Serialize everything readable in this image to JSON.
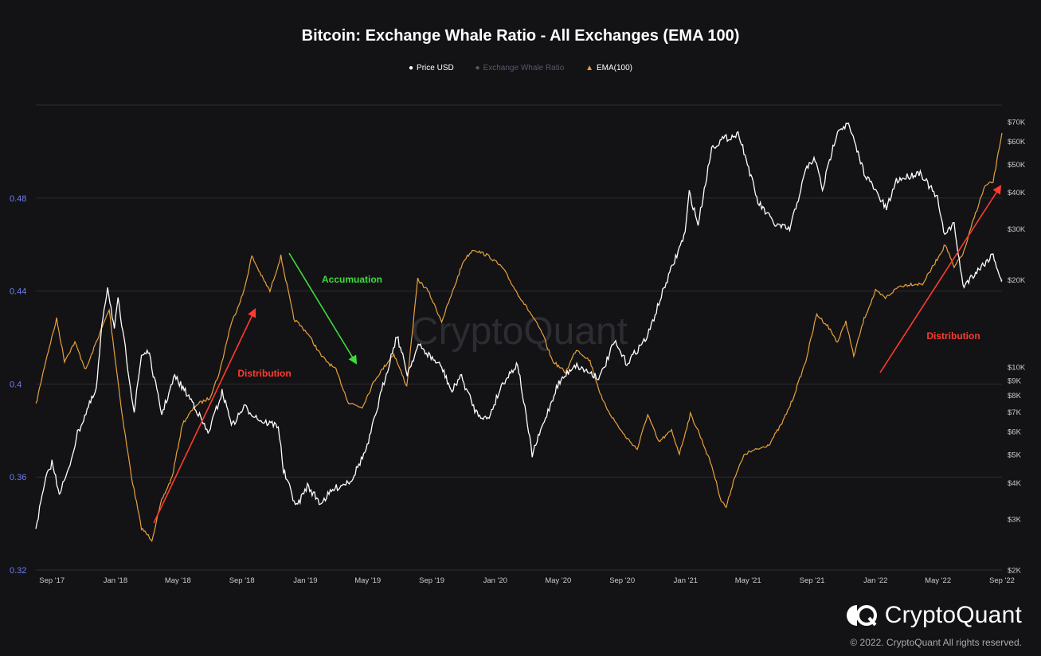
{
  "title": "Bitcoin: Exchange Whale Ratio - All Exchanges (EMA 100)",
  "legend": {
    "price": "Price USD",
    "whale": "Exchange Whale Ratio",
    "ema": "EMA(100)"
  },
  "colors": {
    "background": "#131316",
    "price_line": "#ffffff",
    "ema_line": "#e8a13b",
    "left_axis_text": "#6f7cf0",
    "right_axis_text": "#c9c9cf",
    "grid": "#2c2c33",
    "arrow_red": "#ff3b30",
    "arrow_green": "#3ddc3d",
    "text_red": "#ff3b30",
    "text_green": "#3ddc3d"
  },
  "annotations": {
    "distribution_1": "Distribution",
    "accumulation": "Accumuation",
    "distribution_2": "Distribution"
  },
  "brand": {
    "name": "CryptoQuant",
    "watermark": "CryptoQuant",
    "copyright": "© 2022. CryptoQuant All rights reserved."
  },
  "chart_data": {
    "type": "line",
    "x_ticks": [
      "Sep '17",
      "Jan '18",
      "May '18",
      "Sep '18",
      "Jan '19",
      "May '19",
      "Sep '19",
      "Jan '20",
      "May '20",
      "Sep '20",
      "Jan '21",
      "May '21",
      "Sep '21",
      "Jan '22",
      "May '22",
      "Sep '22"
    ],
    "x_range": [
      "2017-08-01",
      "2022-09-01"
    ],
    "left_axis": {
      "ticks": [
        "0.32",
        "0.36",
        "0.4",
        "0.44",
        "0.48"
      ],
      "ylim": [
        0.32,
        0.52
      ]
    },
    "right_axis": {
      "scale": "log",
      "ticks": [
        "$2K",
        "$3K",
        "$4K",
        "$5K",
        "$6K",
        "$7K",
        "$8K",
        "$9K",
        "$10K",
        "$20K",
        "$30K",
        "$40K",
        "$50K",
        "$60K",
        "$70K"
      ],
      "ylim": [
        2000,
        80000
      ]
    },
    "series": [
      {
        "name": "Price USD",
        "axis": "right",
        "points": [
          [
            "2017-08-01",
            2800
          ],
          [
            "2017-08-20",
            4100
          ],
          [
            "2017-09-01",
            4700
          ],
          [
            "2017-09-15",
            3700
          ],
          [
            "2017-10-01",
            4300
          ],
          [
            "2017-10-20",
            5900
          ],
          [
            "2017-11-10",
            7300
          ],
          [
            "2017-11-25",
            8300
          ],
          [
            "2017-12-08",
            15000
          ],
          [
            "2017-12-17",
            19000
          ],
          [
            "2017-12-30",
            13500
          ],
          [
            "2018-01-06",
            17000
          ],
          [
            "2018-01-20",
            11500
          ],
          [
            "2018-02-06",
            7000
          ],
          [
            "2018-02-20",
            11000
          ],
          [
            "2018-03-05",
            11400
          ],
          [
            "2018-03-31",
            6900
          ],
          [
            "2018-04-25",
            9300
          ],
          [
            "2018-05-31",
            7500
          ],
          [
            "2018-06-28",
            5900
          ],
          [
            "2018-07-25",
            8200
          ],
          [
            "2018-08-14",
            6300
          ],
          [
            "2018-09-05",
            7300
          ],
          [
            "2018-10-10",
            6500
          ],
          [
            "2018-11-10",
            6300
          ],
          [
            "2018-11-20",
            4400
          ],
          [
            "2018-12-15",
            3300
          ],
          [
            "2019-01-05",
            3900
          ],
          [
            "2019-01-30",
            3400
          ],
          [
            "2019-02-25",
            3800
          ],
          [
            "2019-03-31",
            4100
          ],
          [
            "2019-04-30",
            5300
          ],
          [
            "2019-05-30",
            8600
          ],
          [
            "2019-06-26",
            12900
          ],
          [
            "2019-07-16",
            9500
          ],
          [
            "2019-08-06",
            11900
          ],
          [
            "2019-09-20",
            10000
          ],
          [
            "2019-10-10",
            8200
          ],
          [
            "2019-10-26",
            9400
          ],
          [
            "2019-11-25",
            7000
          ],
          [
            "2019-12-18",
            6600
          ],
          [
            "2020-01-15",
            8800
          ],
          [
            "2020-02-13",
            10300
          ],
          [
            "2020-03-12",
            5000
          ],
          [
            "2020-04-30",
            8700
          ],
          [
            "2020-06-01",
            10200
          ],
          [
            "2020-07-20",
            9200
          ],
          [
            "2020-08-17",
            12200
          ],
          [
            "2020-09-10",
            10300
          ],
          [
            "2020-10-20",
            12800
          ],
          [
            "2020-11-20",
            18600
          ],
          [
            "2020-12-31",
            29000
          ],
          [
            "2021-01-08",
            40000
          ],
          [
            "2021-01-25",
            31000
          ],
          [
            "2021-02-20",
            57000
          ],
          [
            "2021-03-13",
            61000
          ],
          [
            "2021-04-14",
            63500
          ],
          [
            "2021-05-20",
            37000
          ],
          [
            "2021-06-22",
            31000
          ],
          [
            "2021-07-20",
            29800
          ],
          [
            "2021-08-22",
            49000
          ],
          [
            "2021-09-07",
            52000
          ],
          [
            "2021-09-21",
            41000
          ],
          [
            "2021-10-20",
            66000
          ],
          [
            "2021-11-10",
            68500
          ],
          [
            "2021-12-10",
            47000
          ],
          [
            "2022-01-22",
            35000
          ],
          [
            "2022-02-10",
            44000
          ],
          [
            "2022-03-28",
            47000
          ],
          [
            "2022-04-30",
            38000
          ],
          [
            "2022-05-12",
            29000
          ],
          [
            "2022-06-01",
            31000
          ],
          [
            "2022-06-18",
            19000
          ],
          [
            "2022-07-10",
            21000
          ],
          [
            "2022-08-15",
            24500
          ],
          [
            "2022-08-30",
            20000
          ],
          [
            "2022-09-01",
            20000
          ]
        ]
      },
      {
        "name": "EMA(100)",
        "axis": "left",
        "points": [
          [
            "2017-08-01",
            0.391
          ],
          [
            "2017-08-20",
            0.41
          ],
          [
            "2017-09-10",
            0.428
          ],
          [
            "2017-09-25",
            0.41
          ],
          [
            "2017-10-15",
            0.418
          ],
          [
            "2017-11-05",
            0.406
          ],
          [
            "2017-11-25",
            0.418
          ],
          [
            "2017-12-20",
            0.432
          ],
          [
            "2018-01-01",
            0.41
          ],
          [
            "2018-01-15",
            0.385
          ],
          [
            "2018-02-01",
            0.36
          ],
          [
            "2018-02-20",
            0.338
          ],
          [
            "2018-03-12",
            0.333
          ],
          [
            "2018-03-31",
            0.35
          ],
          [
            "2018-04-20",
            0.36
          ],
          [
            "2018-05-10",
            0.383
          ],
          [
            "2018-06-05",
            0.391
          ],
          [
            "2018-07-01",
            0.394
          ],
          [
            "2018-07-20",
            0.405
          ],
          [
            "2018-08-10",
            0.425
          ],
          [
            "2018-09-05",
            0.44
          ],
          [
            "2018-09-20",
            0.455
          ],
          [
            "2018-10-10",
            0.446
          ],
          [
            "2018-10-25",
            0.44
          ],
          [
            "2018-11-15",
            0.455
          ],
          [
            "2018-12-10",
            0.428
          ],
          [
            "2019-01-05",
            0.422
          ],
          [
            "2019-02-01",
            0.412
          ],
          [
            "2019-03-01",
            0.406
          ],
          [
            "2019-03-25",
            0.392
          ],
          [
            "2019-04-20",
            0.39
          ],
          [
            "2019-05-15",
            0.402
          ],
          [
            "2019-06-20",
            0.413
          ],
          [
            "2019-07-15",
            0.399
          ],
          [
            "2019-08-05",
            0.445
          ],
          [
            "2019-08-25",
            0.44
          ],
          [
            "2019-09-20",
            0.427
          ],
          [
            "2019-10-10",
            0.439
          ],
          [
            "2019-11-01",
            0.453
          ],
          [
            "2019-11-20",
            0.458
          ],
          [
            "2019-12-20",
            0.455
          ],
          [
            "2020-01-15",
            0.45
          ],
          [
            "2020-02-10",
            0.44
          ],
          [
            "2020-03-10",
            0.43
          ],
          [
            "2020-03-31",
            0.422
          ],
          [
            "2020-04-20",
            0.41
          ],
          [
            "2020-05-15",
            0.405
          ],
          [
            "2020-06-05",
            0.415
          ],
          [
            "2020-07-01",
            0.41
          ],
          [
            "2020-07-25",
            0.393
          ],
          [
            "2020-08-15",
            0.385
          ],
          [
            "2020-09-05",
            0.378
          ],
          [
            "2020-09-30",
            0.372
          ],
          [
            "2020-10-20",
            0.387
          ],
          [
            "2020-11-10",
            0.375
          ],
          [
            "2020-12-05",
            0.38
          ],
          [
            "2020-12-20",
            0.37
          ],
          [
            "2021-01-10",
            0.387
          ],
          [
            "2021-01-25",
            0.38
          ],
          [
            "2021-02-20",
            0.365
          ],
          [
            "2021-03-10",
            0.35
          ],
          [
            "2021-03-20",
            0.347
          ],
          [
            "2021-04-05",
            0.36
          ],
          [
            "2021-04-25",
            0.37
          ],
          [
            "2021-05-20",
            0.372
          ],
          [
            "2021-06-10",
            0.374
          ],
          [
            "2021-07-05",
            0.383
          ],
          [
            "2021-07-25",
            0.393
          ],
          [
            "2021-08-20",
            0.41
          ],
          [
            "2021-09-10",
            0.43
          ],
          [
            "2021-10-01",
            0.425
          ],
          [
            "2021-10-20",
            0.418
          ],
          [
            "2021-11-05",
            0.427
          ],
          [
            "2021-11-20",
            0.412
          ],
          [
            "2021-12-10",
            0.428
          ],
          [
            "2022-01-01",
            0.44
          ],
          [
            "2022-01-20",
            0.437
          ],
          [
            "2022-02-15",
            0.442
          ],
          [
            "2022-03-10",
            0.443
          ],
          [
            "2022-04-01",
            0.443
          ],
          [
            "2022-04-25",
            0.452
          ],
          [
            "2022-05-15",
            0.46
          ],
          [
            "2022-06-01",
            0.45
          ],
          [
            "2022-06-20",
            0.457
          ],
          [
            "2022-07-10",
            0.472
          ],
          [
            "2022-07-30",
            0.485
          ],
          [
            "2022-08-15",
            0.487
          ],
          [
            "2022-09-01",
            0.508
          ]
        ]
      }
    ]
  }
}
